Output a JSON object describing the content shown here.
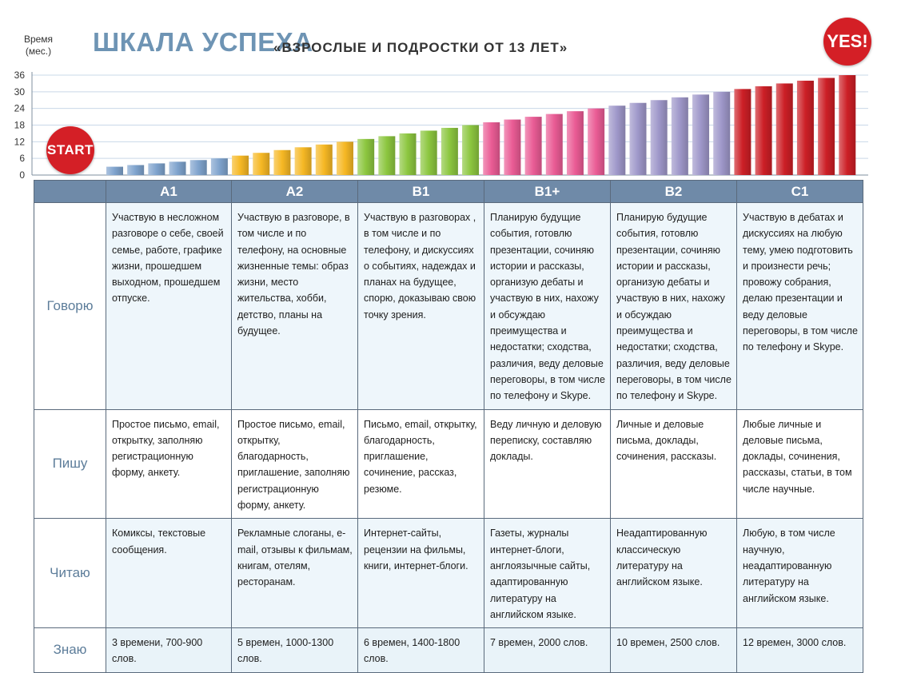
{
  "header": {
    "title": "ШКАЛА УСПЕХА",
    "subtitle": "«ВЗРОСЛЫЕ И ПОДРОСТКИ ОТ 13 ЛЕТ»",
    "start_label": "START",
    "yes_label": "YES!"
  },
  "chart_data": {
    "type": "bar",
    "title": "ШКАЛА УСПЕХА",
    "ylabel": "Время (мес.)",
    "ylim": [
      0,
      36
    ],
    "yticks": [
      "0",
      "6",
      "12",
      "18",
      "24",
      "30",
      "36"
    ],
    "grid": true,
    "series": [
      {
        "name": "A1",
        "color": "#7fa3cd",
        "values": [
          3,
          3.6,
          4.2,
          4.8,
          5.4,
          6
        ]
      },
      {
        "name": "A2",
        "color": "#f6b824",
        "values": [
          7,
          8,
          9,
          10,
          11,
          12
        ]
      },
      {
        "name": "B1",
        "color": "#8cc63f",
        "values": [
          13,
          14,
          15,
          16,
          17,
          18
        ]
      },
      {
        "name": "B1+",
        "color": "#ea5c95",
        "values": [
          19,
          20,
          21,
          22,
          23,
          24
        ]
      },
      {
        "name": "B2",
        "color": "#9e97c9",
        "values": [
          25,
          26,
          27,
          28,
          29,
          30
        ]
      },
      {
        "name": "C1",
        "color": "#cc1f26",
        "values": [
          31,
          32,
          33,
          34,
          35,
          36
        ]
      }
    ]
  },
  "table": {
    "levels": [
      "A1",
      "A2",
      "B1",
      "B1+",
      "B2",
      "C1"
    ],
    "rows": [
      {
        "label": "Говорю",
        "cells": [
          "Участвую в несложном разговоре о себе, своей семье, работе, графике жизни, прошедшем выходном, прошедшем отпуске.",
          "Участвую в разговоре, в том числе и по телефону, на основные жизненные темы: образ жизни, место жительства, хобби, детство, планы на будущее.",
          "Участвую в разговорах , в том числе и по телефону, и дискуссиях о событиях, надеждах и планах на будущее, спорю, доказываю свою точку зрения.",
          "Планирую будущие события, готовлю презентации, сочиняю истории и рассказы, организую дебаты и участвую в них, нахожу и обсуждаю преимущества и недостатки; сходства, различия, веду деловые переговоры, в том числе по телефону и Skype.",
          "Планирую будущие события, готовлю презентации, сочиняю истории и рассказы, организую дебаты и участвую в них, нахожу и обсуждаю преимущества и недостатки; сходства, различия, веду деловые переговоры, в том числе по телефону и Skype.",
          "Участвую в дебатах и дискуссиях на любую тему, умею подготовить и произнести речь; провожу собрания, делаю презентации и веду деловые переговоры, в том числе по телефону и Skype."
        ]
      },
      {
        "label": "Пишу",
        "cells": [
          "Простое письмо, email, открытку, заполняю регистрационную форму, анкету.",
          "Простое письмо, email, открытку, благодарность, приглашение, заполняю регистрационную форму, анкету.",
          "Письмо, email, открытку, благодарность, приглашение, сочинение, рассказ, резюме.",
          "Веду личную и деловую переписку, составляю доклады.",
          "Личные и деловые письма, доклады, сочинения, рассказы.",
          "Любые личные и деловые письма, доклады, сочинения, рассказы, статьи, в том числе научные."
        ]
      },
      {
        "label": "Читаю",
        "cells": [
          "Комиксы, текстовые сообщения.",
          "Рекламные слоганы, e-mail, отзывы к фильмам, книгам, отелям, ресторанам.",
          "Интернет-сайты, рецензии на фильмы, книги, интернет-блоги.",
          "Газеты, журналы интернет-блоги, англоязычные сайты, адаптированную литературу на английском языке.",
          "Неадаптированную классическую литературу на английском языке.",
          "Любую, в том числе научную, неадаптированную литературу на английском языке."
        ]
      },
      {
        "label": "Знаю",
        "cells": [
          "3 времени, 700-900 слов.",
          "5 времен, 1000-1300 слов.",
          "6 времен, 1400-1800 слов.",
          "7 времен, 2000 слов.",
          "10 времен, 2500 слов.",
          "12 времен, 3000 слов."
        ]
      }
    ]
  }
}
